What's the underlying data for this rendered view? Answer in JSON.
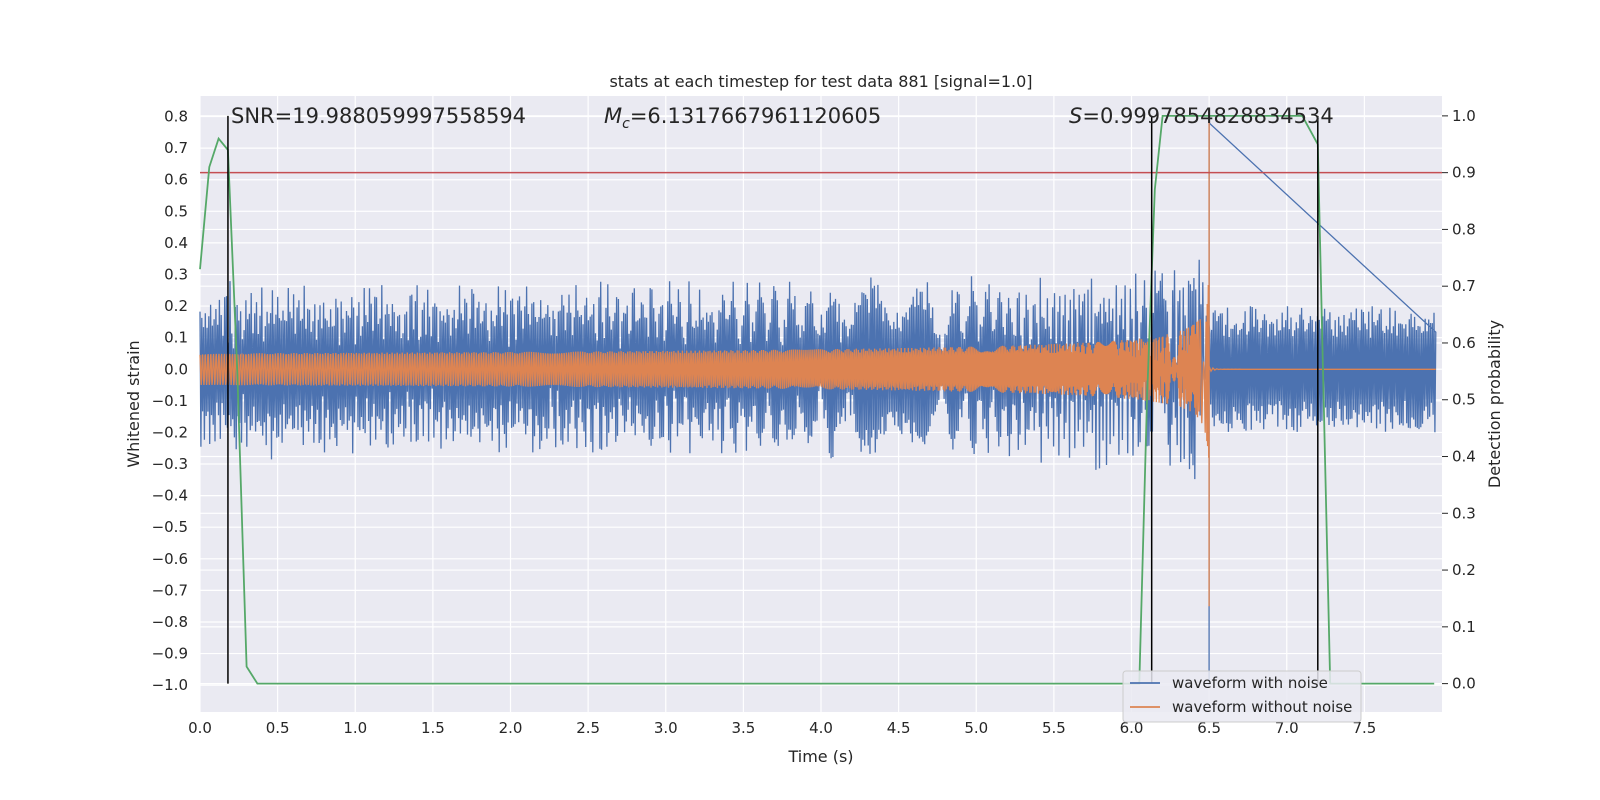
{
  "chart_data": {
    "type": "line",
    "title": "stats at each timestep for test data 881 [signal=1.0]",
    "xlabel": "Time (s)",
    "ylabel": "Whitened strain",
    "y2label": "Detection probability",
    "xlim": [
      0.0,
      8.0
    ],
    "ylim": [
      -1.085,
      0.865
    ],
    "y2lim": [
      -0.05,
      1.035
    ],
    "xticks": [
      "0.0",
      "0.5",
      "1.0",
      "1.5",
      "2.0",
      "2.5",
      "3.0",
      "3.5",
      "4.0",
      "4.5",
      "5.0",
      "5.5",
      "6.0",
      "6.5",
      "7.0",
      "7.5"
    ],
    "yticks": [
      "−1.0",
      "−0.9",
      "−0.8",
      "−0.7",
      "−0.6",
      "−0.5",
      "−0.4",
      "−0.3",
      "−0.2",
      "−0.1",
      "0.0",
      "0.1",
      "0.2",
      "0.3",
      "0.4",
      "0.5",
      "0.6",
      "0.7",
      "0.8"
    ],
    "y2ticks": [
      "0.0",
      "0.1",
      "0.2",
      "0.3",
      "0.4",
      "0.5",
      "0.6",
      "0.7",
      "0.8",
      "0.9",
      "1.0"
    ],
    "annotations": {
      "snr": "SNR=19.988059997558594",
      "mc_symbol": "M",
      "mc_sub": "c",
      "mc_value": "=6.1317667961120605",
      "s_symbol": "S",
      "s_value": "=0.9997854828834534"
    },
    "series": [
      {
        "name": "waveform with noise",
        "color": "#4c72b0",
        "description": "whitened strain with noise; amplitude envelope ~±0.22 rising to ±0.8 near merger at 6.5 s, noise ~±0.2 after",
        "envelope": {
          "noise_amp": 0.22,
          "merger_time": 6.5,
          "peak_high": 0.78,
          "peak_low": -1.0,
          "post_merger_amp": 0.2
        }
      },
      {
        "name": "waveform without noise",
        "color": "#dd8452",
        "description": "clean chirp signal; amplitude ~0.05 at start growing to ~0.78 at merger 6.5 s, ~0 after",
        "envelope": {
          "start_amp": 0.05,
          "merger_time": 6.5,
          "peak_high": 0.78,
          "peak_low": -0.75
        }
      },
      {
        "name": "detection probability",
        "color": "#55a868",
        "axis": "right",
        "x": [
          0.0,
          0.06,
          0.12,
          0.18,
          0.24,
          0.3,
          0.37,
          6.05,
          6.1,
          6.15,
          6.2,
          7.1,
          7.2,
          7.28,
          7.95
        ],
        "y": [
          0.73,
          0.91,
          0.96,
          0.94,
          0.55,
          0.03,
          0.0,
          0.0,
          0.5,
          0.87,
          1.0,
          1.0,
          0.95,
          0.0,
          0.0
        ]
      }
    ],
    "threshold": {
      "axis": "right",
      "value": 0.9,
      "color": "#c44e52"
    },
    "vlines": {
      "x": [
        0.18,
        6.13,
        7.2
      ],
      "y2_top": 1.0,
      "y2_bottom": 0.0,
      "color": "#000000"
    },
    "legend": {
      "placement": "bottom-right",
      "entries": [
        "waveform with noise",
        "waveform without noise"
      ]
    },
    "grid": true
  }
}
